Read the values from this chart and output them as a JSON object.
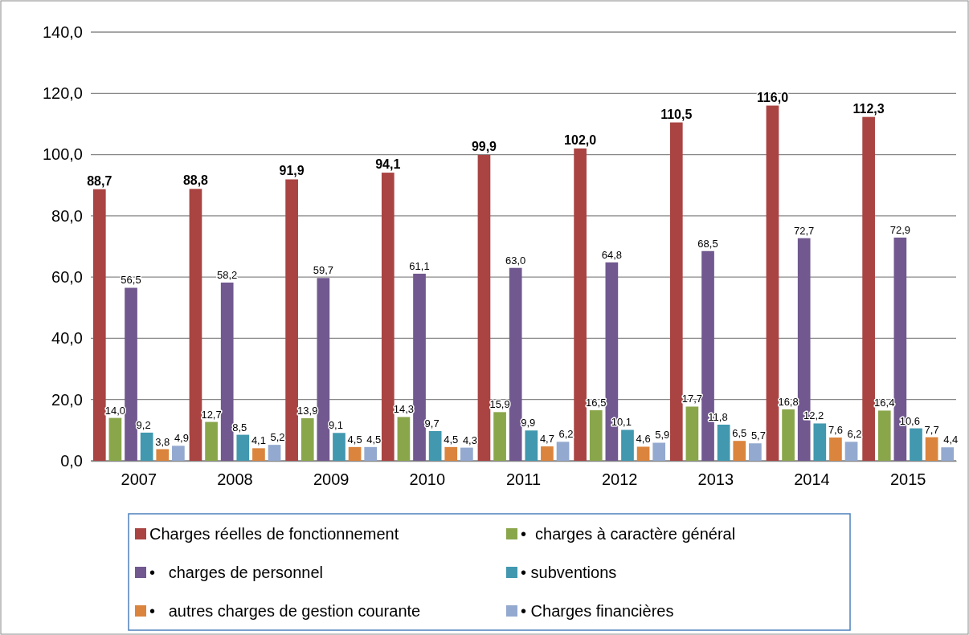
{
  "chart_data": {
    "type": "bar",
    "categories": [
      "2007",
      "2008",
      "2009",
      "2010",
      "2011",
      "2012",
      "2013",
      "2014",
      "2015"
    ],
    "series": [
      {
        "name": "Charges réelles de fonctionnement",
        "color": "#a94442",
        "values": [
          88.7,
          88.8,
          91.9,
          94.1,
          99.9,
          102.0,
          110.5,
          116.0,
          112.3
        ],
        "value_labels": [
          "88,7",
          "88,8",
          "91,9",
          "94,1",
          "99,9",
          "102,0",
          "110,5",
          "116,0",
          "112,3"
        ]
      },
      {
        "name": "•  charges à caractère général",
        "color": "#8aa64b",
        "values": [
          14.0,
          12.7,
          13.9,
          14.3,
          15.9,
          16.5,
          17.7,
          16.8,
          16.4
        ],
        "value_labels": [
          "14,0",
          "12,7",
          "13,9",
          "14,3",
          "15,9",
          "16,5",
          "17,7",
          "16,8",
          "16,4"
        ]
      },
      {
        "name": "•   charges de personnel",
        "color": "#71588f",
        "values": [
          56.5,
          58.2,
          59.7,
          61.1,
          63.0,
          64.8,
          68.5,
          72.7,
          72.9
        ],
        "value_labels": [
          "56,5",
          "58,2",
          "59,7",
          "61,1",
          "63,0",
          "64,8",
          "68,5",
          "72,7",
          "72,9"
        ]
      },
      {
        "name": "• subventions",
        "color": "#4198af",
        "values": [
          9.2,
          8.5,
          9.1,
          9.7,
          9.9,
          10.1,
          11.8,
          12.2,
          10.6
        ],
        "value_labels": [
          "9,2",
          "8,5",
          "9,1",
          "9,7",
          "9,9",
          "10,1",
          "11,8",
          "12,2",
          "10,6"
        ]
      },
      {
        "name": "•   autres charges de gestion courante",
        "color": "#db843d",
        "values": [
          3.8,
          4.1,
          4.5,
          4.5,
          4.7,
          4.6,
          6.5,
          7.6,
          7.7
        ],
        "value_labels": [
          "3,8",
          "4,1",
          "4,5",
          "4,5",
          "4,7",
          "4,6",
          "6,5",
          "7,6",
          "7,7"
        ]
      },
      {
        "name": "• Charges financières",
        "color": "#93a9cf",
        "values": [
          4.9,
          5.2,
          4.5,
          4.3,
          6.2,
          5.9,
          5.7,
          6.2,
          4.4
        ],
        "value_labels": [
          "4,9",
          "5,2",
          "4,5",
          "4,3",
          "6,2",
          "5,9",
          "5,7",
          "6,2",
          "4,4"
        ]
      }
    ],
    "ylim": [
      0,
      140
    ],
    "yticks": [
      {
        "value": 0,
        "label": "0,0"
      },
      {
        "value": 20,
        "label": "20,0"
      },
      {
        "value": 40,
        "label": "40,0"
      },
      {
        "value": 60,
        "label": "60,0"
      },
      {
        "value": 80,
        "label": "80,0"
      },
      {
        "value": 100,
        "label": "100,0"
      },
      {
        "value": 120,
        "label": "120,0"
      },
      {
        "value": 140,
        "label": "140,0"
      }
    ],
    "grid": "y",
    "legend": "bottom"
  }
}
